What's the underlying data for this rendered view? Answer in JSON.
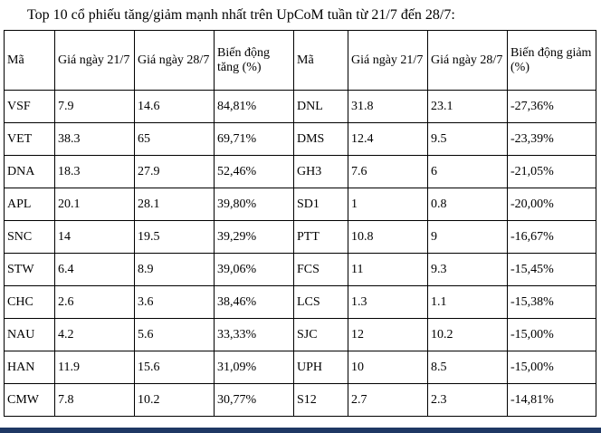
{
  "title": "Top 10 cổ phiếu tăng/giảm mạnh nhất trên UpCoM tuần từ 21/7 đến 28/7:",
  "colors": {
    "bottom_bar": "#1F3864",
    "table_border": "#000000",
    "text": "#000000"
  },
  "table": {
    "headers": [
      "Mã",
      "Giá ngày 21/7",
      "Giá ngày 28/7",
      "Biến động tăng (%)",
      "Mã",
      "Giá ngày 21/7",
      "Giá ngày 28/7",
      "Biến động giảm (%)"
    ],
    "rows": [
      [
        "VSF",
        "7.9",
        "14.6",
        "84,81%",
        "DNL",
        "31.8",
        "23.1",
        "-27,36%"
      ],
      [
        "VET",
        "38.3",
        "65",
        "69,71%",
        "DMS",
        "12.4",
        "9.5",
        "-23,39%"
      ],
      [
        "DNA",
        "18.3",
        "27.9",
        "52,46%",
        "GH3",
        "7.6",
        "6",
        "-21,05%"
      ],
      [
        "APL",
        "20.1",
        "28.1",
        "39,80%",
        "SD1",
        "1",
        "0.8",
        "-20,00%"
      ],
      [
        "SNC",
        "14",
        "19.5",
        "39,29%",
        "PTT",
        "10.8",
        "9",
        "-16,67%"
      ],
      [
        "STW",
        "6.4",
        "8.9",
        "39,06%",
        "FCS",
        "11",
        "9.3",
        "-15,45%"
      ],
      [
        "CHC",
        "2.6",
        "3.6",
        "38,46%",
        "LCS",
        "1.3",
        "1.1",
        "-15,38%"
      ],
      [
        "NAU",
        "4.2",
        "5.6",
        "33,33%",
        "SJC",
        "12",
        "10.2",
        "-15,00%"
      ],
      [
        "HAN",
        "11.9",
        "15.6",
        "31,09%",
        "UPH",
        "10",
        "8.5",
        "-15,00%"
      ],
      [
        "CMW",
        "7.8",
        "10.2",
        "30,77%",
        "S12",
        "2.7",
        "2.3",
        "-14,81%"
      ]
    ]
  }
}
